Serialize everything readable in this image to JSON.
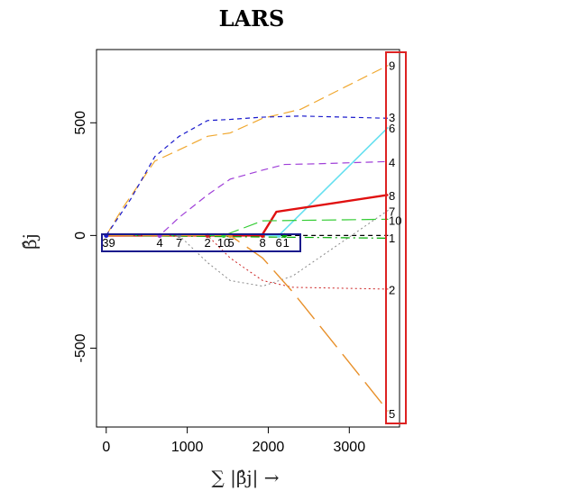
{
  "chart_data": {
    "type": "line",
    "title": "LARS",
    "xlabel": "∑ |β̂j| →",
    "ylabel": "β̂j",
    "xlim": [
      -120,
      3620
    ],
    "ylim": [
      -850,
      825
    ],
    "x_ticks": [
      0,
      1000,
      2000,
      3000
    ],
    "x_tick_labels": [
      "0",
      "1000",
      "2000",
      "3000"
    ],
    "y_ticks": [
      -500,
      0,
      500
    ],
    "y_tick_labels": [
      "-500",
      "0",
      "500"
    ],
    "grid": false,
    "legend": "none",
    "series": [
      {
        "name": "9",
        "color": "#f0a830",
        "dash": "12,6",
        "width": 1.2,
        "x": [
          0,
          200,
          600,
          900,
          1250,
          1530,
          1930,
          2400,
          3480
        ],
        "y": [
          0,
          120,
          330,
          380,
          440,
          455,
          520,
          560,
          755
        ]
      },
      {
        "name": "3",
        "color": "#1a1acc",
        "dash": "5,4",
        "width": 1.2,
        "x": [
          0,
          300,
          600,
          900,
          1250,
          1530,
          1930,
          2400,
          3480
        ],
        "y": [
          0,
          160,
          350,
          440,
          510,
          515,
          525,
          530,
          520
        ]
      },
      {
        "name": "6",
        "color": "#66e0f0",
        "dash": "",
        "width": 1.6,
        "x": [
          0,
          2130,
          3480
        ],
        "y": [
          0,
          0,
          480
        ]
      },
      {
        "name": "4",
        "color": "#a040d8",
        "dash": "8,5",
        "width": 1.2,
        "x": [
          0,
          660,
          900,
          1250,
          1530,
          1930,
          2200,
          2600,
          3480
        ],
        "y": [
          0,
          0,
          80,
          180,
          250,
          290,
          315,
          318,
          328
        ]
      },
      {
        "name": "8",
        "color": "#e01010",
        "dash": "",
        "width": 2.4,
        "x": [
          0,
          1920,
          2100,
          3480
        ],
        "y": [
          0,
          0,
          105,
          180
        ]
      },
      {
        "name": "7",
        "color": "#888888",
        "dash": "2,3",
        "width": 1.0,
        "x": [
          0,
          900,
          1250,
          1530,
          1930,
          2300,
          3480
        ],
        "y": [
          0,
          0,
          -120,
          -200,
          -225,
          -180,
          112
        ]
      },
      {
        "name": "10",
        "color": "#33cc33",
        "dash": "16,6",
        "width": 1.2,
        "x": [
          0,
          1450,
          1930,
          2600,
          3480
        ],
        "y": [
          0,
          0,
          65,
          68,
          72
        ]
      },
      {
        "name": "1",
        "color": "#00aa00",
        "dash": "10,4,2,4",
        "width": 1.2,
        "x": [
          0,
          3480
        ],
        "y": [
          0,
          -12
        ]
      },
      {
        "name": "2",
        "color": "#cc2222",
        "dash": "2,3",
        "width": 1.0,
        "x": [
          0,
          1250,
          1530,
          1930,
          2300,
          3480
        ],
        "y": [
          0,
          0,
          -100,
          -200,
          -230,
          -238
        ]
      },
      {
        "name": "5",
        "color": "#e8902a",
        "dash": "30,10",
        "width": 1.4,
        "x": [
          0,
          1530,
          1930,
          2300,
          3480
        ],
        "y": [
          0,
          0,
          -100,
          -250,
          -780
        ]
      }
    ],
    "baseline": {
      "color": "#000000",
      "dash": "5,4",
      "x": [
        1930,
        3480
      ],
      "y": [
        0,
        0
      ]
    },
    "entry_points": [
      {
        "x": 0,
        "color": "#1a1acc"
      },
      {
        "x": 660,
        "color": "#a040d8"
      },
      {
        "x": 900,
        "color": "#888888"
      },
      {
        "x": 1250,
        "color": "#cc2222"
      },
      {
        "x": 1450,
        "color": "#33cc33"
      },
      {
        "x": 1530,
        "color": "#e8902a"
      },
      {
        "x": 1930,
        "color": "#e01010"
      },
      {
        "x": 2130,
        "color": "#66e0f0"
      },
      {
        "x": 2200,
        "color": "#00aa00"
      }
    ],
    "entry_labels": [
      {
        "text": "3",
        "x": -10
      },
      {
        "text": "9",
        "x": 70
      },
      {
        "text": "4",
        "x": 660
      },
      {
        "text": "7",
        "x": 900
      },
      {
        "text": "2",
        "x": 1250
      },
      {
        "text": "10",
        "x": 1450
      },
      {
        "text": "5",
        "x": 1540
      },
      {
        "text": "8",
        "x": 1930
      },
      {
        "text": "6",
        "x": 2130
      },
      {
        "text": "1",
        "x": 2220
      }
    ],
    "end_labels": [
      {
        "text": "9",
        "y": 755
      },
      {
        "text": "3",
        "y": 525
      },
      {
        "text": "6",
        "y": 478
      },
      {
        "text": "4",
        "y": 325
      },
      {
        "text": "8",
        "y": 178
      },
      {
        "text": "7",
        "y": 108
      },
      {
        "text": "10",
        "y": 68
      },
      {
        "text": "1",
        "y": -10
      },
      {
        "text": "2",
        "y": -240
      },
      {
        "text": "5",
        "y": -790
      }
    ],
    "highlight_colors": {
      "entry_box": "#1a1a8c",
      "end_box": "#dd2222"
    }
  }
}
